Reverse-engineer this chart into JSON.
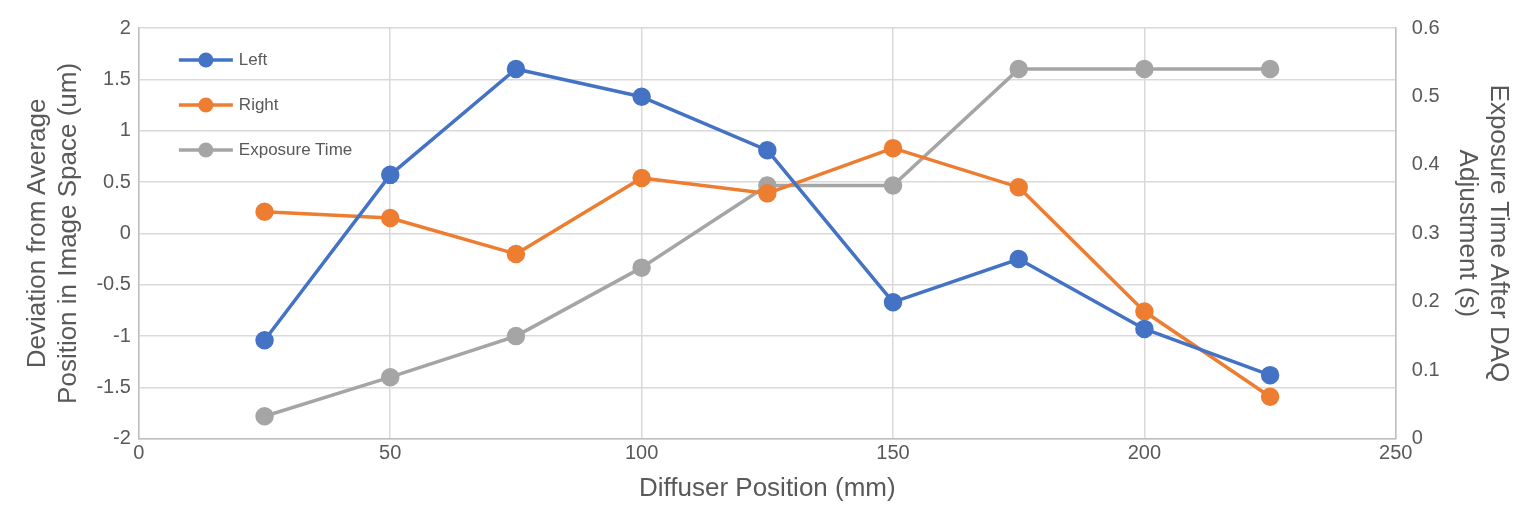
{
  "chart_data": {
    "type": "line",
    "xlabel": "Diffuser Position (mm)",
    "ylabel": "Deviation from Average Position in Image Space (um)",
    "y2label": "Exposure Time After DAQ Adjustment (s)",
    "x": [
      25,
      50,
      75,
      100,
      125,
      150,
      175,
      200,
      225
    ],
    "series": [
      {
        "name": "Left",
        "color": "#4472c4",
        "values": [
          -1.04,
          0.57,
          1.6,
          1.33,
          0.81,
          -0.67,
          -0.25,
          -0.93,
          -1.38
        ]
      },
      {
        "name": "Right",
        "color": "#ed7d31",
        "values": [
          0.21,
          0.15,
          -0.2,
          0.54,
          0.39,
          0.83,
          0.45,
          -0.76,
          -1.59
        ]
      },
      {
        "name": "Exposure Time",
        "color": "#a5a5a5",
        "axis": "y2",
        "values": [
          0.033,
          0.09,
          0.15,
          0.25,
          0.37,
          0.37,
          0.54,
          0.54,
          0.54
        ]
      }
    ],
    "xlim": [
      0,
      250
    ],
    "xticks": [
      0,
      50,
      100,
      150,
      200,
      250
    ],
    "ylim": [
      -2,
      2
    ],
    "yticks": [
      -2,
      -1.5,
      -1,
      -0.5,
      0,
      0.5,
      1,
      1.5,
      2
    ],
    "y2lim": [
      0,
      0.6
    ],
    "y2ticks": [
      0,
      0.1,
      0.2,
      0.3,
      0.4,
      0.5,
      0.6
    ],
    "grid": true,
    "legend": "top left",
    "marker": "circle",
    "line_style": "solid"
  }
}
